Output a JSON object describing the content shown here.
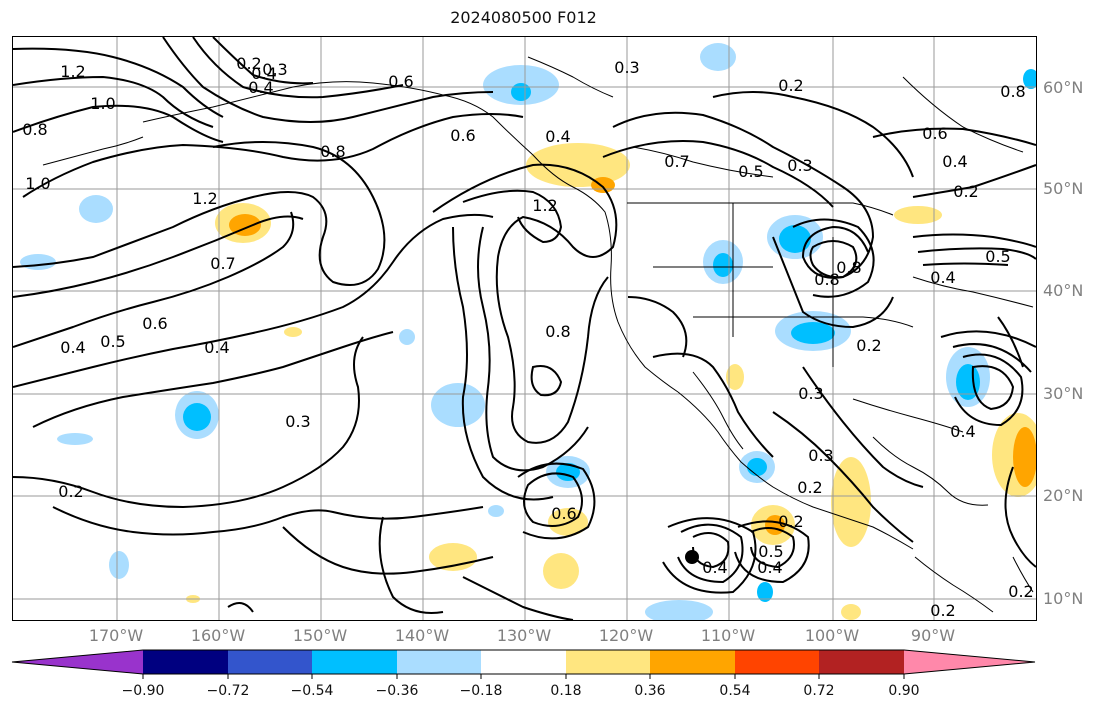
{
  "title": "2024080500 F012",
  "lat_labels": [
    "60°N",
    "50°N",
    "40°N",
    "30°N",
    "20°N",
    "10°N"
  ],
  "lon_labels": [
    "170°W",
    "160°W",
    "150°W",
    "140°W",
    "130°W",
    "120°W",
    "110°W",
    "100°W",
    "90°W"
  ],
  "contour_labels": [
    "1.2",
    "1.0",
    "0.8",
    "1.0",
    "0.2",
    "0.4",
    "0.3",
    "0.4",
    "0.6",
    "0.6",
    "0.4",
    "0.3",
    "0.2",
    "0.7",
    "0.5",
    "0.3",
    "0.8",
    "0.6",
    "0.4",
    "0.2",
    "1.2",
    "0.7",
    "0.6",
    "0.5",
    "0.4",
    "0.4",
    "0.3",
    "0.2",
    "0.8",
    "1.2",
    "0.8",
    "0.8",
    "0.2",
    "0.3",
    "0.4",
    "0.3",
    "0.2",
    "0.4",
    "0.5",
    "0.4",
    "0.2",
    "0.6",
    "0.5",
    "0.4",
    "0.8",
    "0.2",
    "0.2"
  ],
  "colorbar": {
    "ticks": [
      "−0.90",
      "−0.72",
      "−0.54",
      "−0.36",
      "−0.18",
      "0.18",
      "0.36",
      "0.54",
      "0.72",
      "0.90"
    ],
    "colors": [
      "#9933cc",
      "#000080",
      "#3355cc",
      "#00bfff",
      "#aaddff",
      "#ffffff",
      "#ffe680",
      "#ffa500",
      "#ff4400",
      "#b22222",
      "#ff88aa"
    ]
  }
}
